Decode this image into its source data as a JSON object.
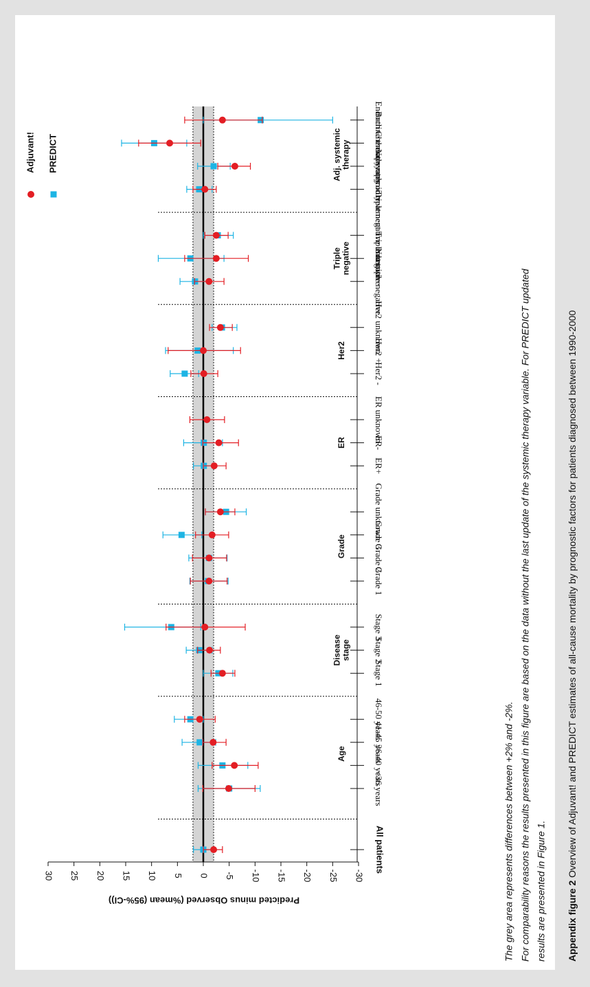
{
  "chart_data": {
    "type": "forest",
    "axis_label": "Predicted minus Observed (%mean (95%-CI))",
    "xlim": [
      30,
      -30
    ],
    "xticks": [
      30,
      25,
      20,
      15,
      10,
      5,
      0,
      -5,
      -10,
      -15,
      -20,
      -25,
      -30
    ],
    "band": [
      2,
      -2
    ],
    "groups": [
      {
        "categories": [
          "All patients"
        ]
      },
      {
        "label": [
          "Age"
        ],
        "categories": [
          "<36 years",
          "36-40 years",
          "41-45 years",
          "46-50 years"
        ]
      },
      {
        "label": [
          "Disease",
          "stage"
        ],
        "categories": [
          "Stage 1",
          "Stage 2",
          "Stage 3"
        ]
      },
      {
        "label": [
          "Grade"
        ],
        "categories": [
          "Grade 1",
          "Grade 2",
          "Grade 3",
          "Grade unknown"
        ]
      },
      {
        "label": [
          "ER"
        ],
        "categories": [
          "ER+",
          "ER-",
          "ER unknown"
        ]
      },
      {
        "label": [
          "Her2"
        ],
        "categories": [
          "Her2 -",
          "Her2 +",
          "Her2 unknown"
        ]
      },
      {
        "label": [
          "Triple",
          "negative"
        ],
        "categories": [
          "Not triple negative",
          "Triple negative",
          "Triple negative unknown"
        ]
      },
      {
        "label": [
          "Adj. systemic",
          "therapy"
        ],
        "categories": [
          "No systemic treatment",
          "Chemotherapy only",
          "Endocrine therapy only",
          "Both"
        ]
      }
    ],
    "series": [
      {
        "name": "PREDICT",
        "color": "#1db4e4",
        "marker": "square",
        "values": [
          0,
          -5,
          -3.7,
          0.7,
          2.5,
          -2.9,
          0.8,
          6.2,
          -0.9,
          -1.1,
          4.2,
          -4.4,
          -0.1,
          -0.1,
          null,
          3.6,
          1.1,
          -3.6,
          1.6,
          2.5,
          -2.8,
          0.8,
          -2,
          9.5,
          -11.1
        ],
        "lower": [
          -2,
          -11,
          -8.6,
          -2.4,
          0,
          -5.7,
          -1.7,
          0.5,
          -4.8,
          -4.6,
          0.3,
          -8.3,
          -2.1,
          -3.7,
          null,
          0.9,
          -5.8,
          -6.5,
          -1.1,
          -4,
          -5.8,
          -1.7,
          -5.2,
          3.2,
          -25
        ],
        "upper": [
          1.9,
          1,
          1,
          4.1,
          5.6,
          0,
          3.3,
          15.2,
          2.6,
          2.8,
          7.8,
          -0.4,
          1.9,
          3.8,
          null,
          6.4,
          7.3,
          -1.7,
          4.5,
          8.7,
          0,
          3.2,
          1.1,
          15.8,
          0
        ]
      },
      {
        "name": "Adjuvant!",
        "color": "#e31e24",
        "marker": "circle",
        "values": [
          -2,
          -4.9,
          -6,
          -1.9,
          0.7,
          -3.7,
          -1.2,
          -0.3,
          -1.1,
          -1.1,
          -1.7,
          -3.3,
          -2.1,
          -3,
          -0.7,
          -0.1,
          0,
          -3.3,
          -1.1,
          -2.5,
          -2.5,
          -0.3,
          -6.1,
          6.5,
          -3.7
        ],
        "lower": [
          -3.7,
          -10,
          -10.6,
          -4.4,
          -2.3,
          -6.1,
          -3.3,
          -8.1,
          -4.6,
          -4.5,
          -4.9,
          -6.1,
          -4.4,
          -6.8,
          -4.1,
          -2.8,
          -7.2,
          -5.6,
          -4,
          -8.7,
          -4.8,
          -2.5,
          -9.1,
          0.5,
          -11.4
        ],
        "upper": [
          0,
          0.1,
          -1.7,
          0.1,
          3.6,
          -1.5,
          1.1,
          7.2,
          2.5,
          2.1,
          1.5,
          -0.4,
          0,
          0.1,
          2.6,
          2.4,
          6.8,
          -1.2,
          1.7,
          3.6,
          -0.3,
          2,
          -2.8,
          12.5,
          3.6
        ]
      }
    ]
  },
  "notes": [
    "The grey area represents differences between +2% and -2%.",
    "For comparability reasons the results presented in this figure are based on the data without the last update of the systemic therapy variable. For PREDICT updated",
    "results are presented in Figure 1."
  ],
  "caption": {
    "label": "Appendix figure 2",
    "text": " Overview of Adjuvant! and PREDICT estimates of all-cause mortality by prognostic factors for patients diagnosed between 1990-2000"
  }
}
